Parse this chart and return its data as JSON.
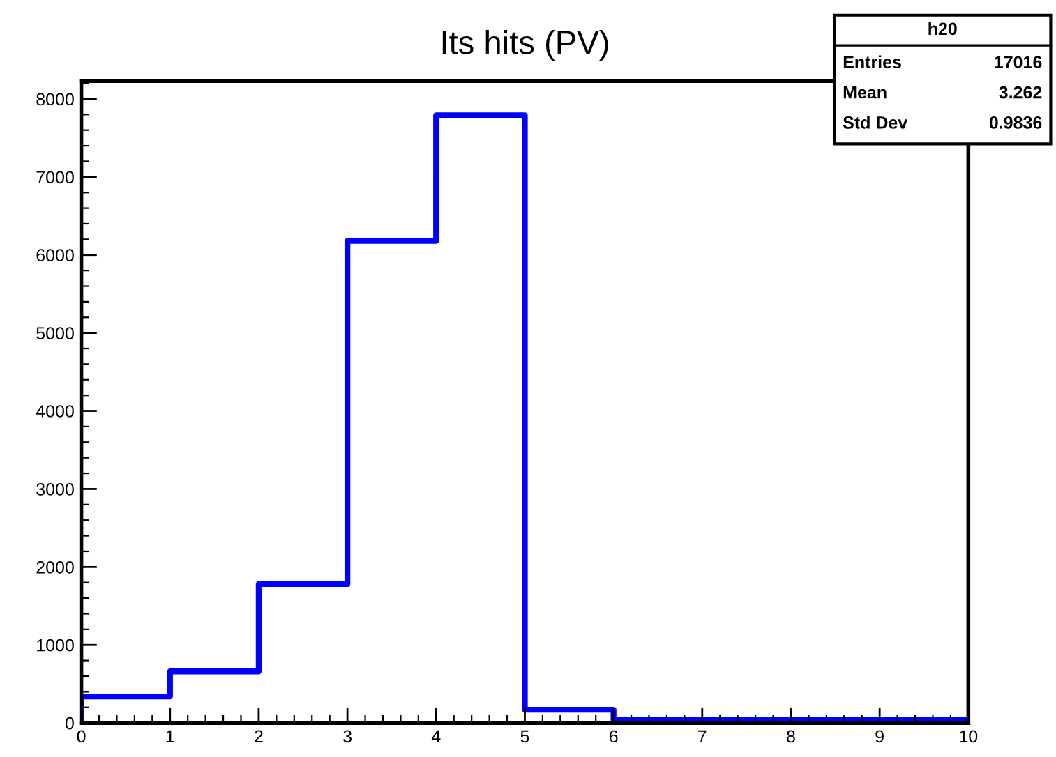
{
  "chart_data": {
    "type": "histogram",
    "title": "Its hits (PV)",
    "bins": [
      0,
      1,
      2,
      3,
      4,
      5,
      6,
      7,
      8,
      9,
      10
    ],
    "values": [
      340,
      660,
      1780,
      6180,
      7790,
      170,
      40,
      40,
      40,
      40
    ],
    "color": "#0000ff",
    "xlim": [
      0,
      10
    ],
    "xticks": [
      0,
      1,
      2,
      3,
      4,
      5,
      6,
      7,
      8,
      9,
      10
    ],
    "ylim": [
      0,
      8230
    ],
    "yticks": [
      0,
      1000,
      2000,
      3000,
      4000,
      5000,
      6000,
      7000,
      8000
    ],
    "grid": false,
    "annotations": [
      "h20",
      "Entries",
      "17016",
      "Mean",
      "3.262",
      "Std Dev",
      "0.9836"
    ]
  }
}
